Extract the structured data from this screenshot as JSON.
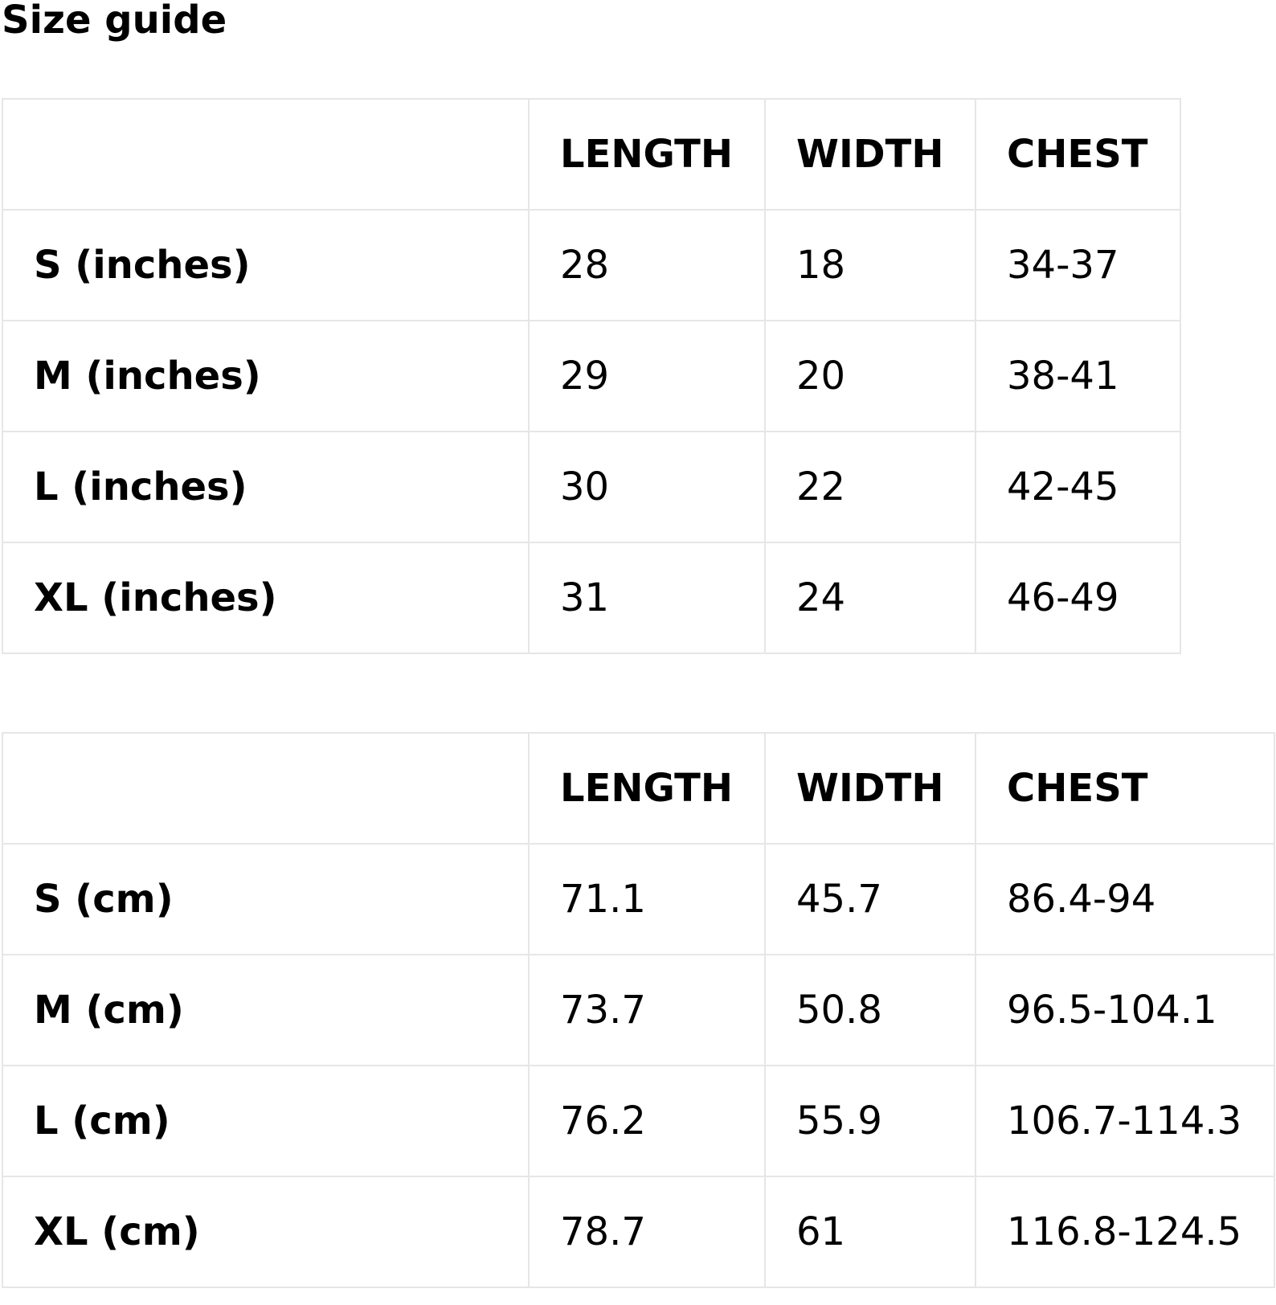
{
  "title": "Size guide",
  "columns": [
    "LENGTH",
    "WIDTH",
    "CHEST"
  ],
  "tables": [
    {
      "rows": [
        {
          "label": "S (inches)",
          "length": "28",
          "width": "18",
          "chest": "34-37"
        },
        {
          "label": "M (inches)",
          "length": "29",
          "width": "20",
          "chest": "38-41"
        },
        {
          "label": "L (inches)",
          "length": "30",
          "width": "22",
          "chest": "42-45"
        },
        {
          "label": "XL (inches)",
          "length": "31",
          "width": "24",
          "chest": "46-49"
        }
      ]
    },
    {
      "rows": [
        {
          "label": "S (cm)",
          "length": "71.1",
          "width": "45.7",
          "chest": "86.4-94"
        },
        {
          "label": "M (cm)",
          "length": "73.7",
          "width": "50.8",
          "chest": "96.5-104.1"
        },
        {
          "label": "L (cm)",
          "length": "76.2",
          "width": "55.9",
          "chest": "106.7-114.3"
        },
        {
          "label": "XL (cm)",
          "length": "78.7",
          "width": "61",
          "chest": "116.8-124.5"
        }
      ]
    }
  ],
  "colors": {
    "border": "#e6e6e6",
    "text": "#000000",
    "background": "#ffffff"
  }
}
